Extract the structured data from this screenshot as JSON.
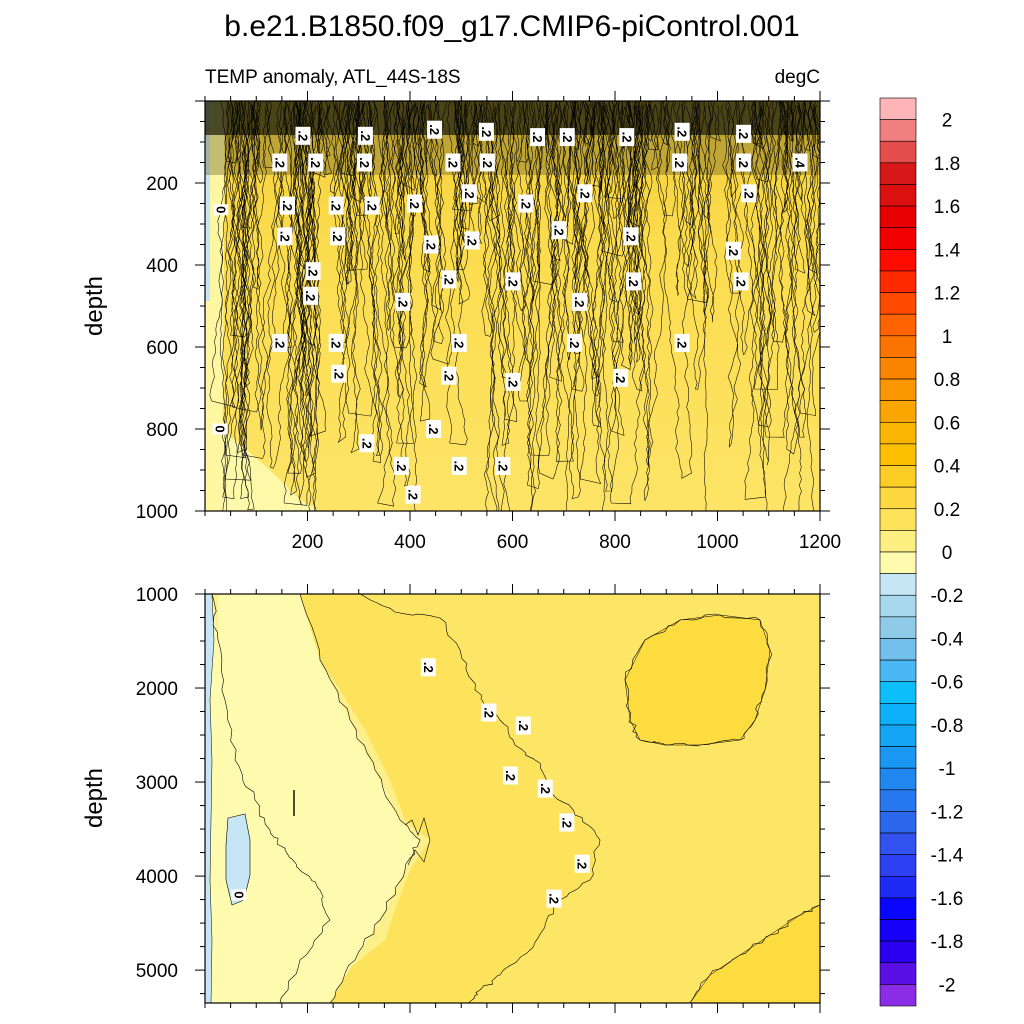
{
  "title": "b.e21.B1850.f09_g17.CMIP6-piControl.001",
  "chart_data": [
    {
      "type": "heatmap",
      "panel": "upper",
      "subtitle_left": "TEMP anomaly, ATL_44S-18S",
      "subtitle_right": "degC",
      "xlabel": "",
      "ylabel": "depth",
      "xlim": [
        0,
        1200
      ],
      "ylim": [
        1000,
        0
      ],
      "xticks": [
        200,
        400,
        600,
        800,
        1000,
        1200
      ],
      "yticks": [
        200,
        400,
        600,
        800,
        1000
      ],
      "contour_labels": [
        {
          "x": 190,
          "y": 85,
          "text": ".2"
        },
        {
          "x": 312,
          "y": 85,
          "text": ".2"
        },
        {
          "x": 447,
          "y": 70,
          "text": ".2"
        },
        {
          "x": 548,
          "y": 75,
          "text": ".2"
        },
        {
          "x": 648,
          "y": 88,
          "text": ".2"
        },
        {
          "x": 706,
          "y": 88,
          "text": ".2"
        },
        {
          "x": 822,
          "y": 88,
          "text": ".2"
        },
        {
          "x": 930,
          "y": 75,
          "text": ".2"
        },
        {
          "x": 1050,
          "y": 80,
          "text": ".2"
        },
        {
          "x": 145,
          "y": 150,
          "text": ".2"
        },
        {
          "x": 215,
          "y": 150,
          "text": ".2"
        },
        {
          "x": 310,
          "y": 150,
          "text": ".2"
        },
        {
          "x": 483,
          "y": 150,
          "text": ".2"
        },
        {
          "x": 550,
          "y": 150,
          "text": ".2"
        },
        {
          "x": 925,
          "y": 150,
          "text": ".2"
        },
        {
          "x": 1050,
          "y": 150,
          "text": ".2"
        },
        {
          "x": 1160,
          "y": 150,
          "text": ".4"
        },
        {
          "x": 30,
          "y": 265,
          "text": "0"
        },
        {
          "x": 160,
          "y": 255,
          "text": ".2"
        },
        {
          "x": 255,
          "y": 255,
          "text": ".2"
        },
        {
          "x": 325,
          "y": 255,
          "text": ".2"
        },
        {
          "x": 408,
          "y": 250,
          "text": ".2"
        },
        {
          "x": 515,
          "y": 225,
          "text": ".2"
        },
        {
          "x": 625,
          "y": 250,
          "text": ".2"
        },
        {
          "x": 740,
          "y": 225,
          "text": ".2"
        },
        {
          "x": 1060,
          "y": 225,
          "text": ".2"
        },
        {
          "x": 155,
          "y": 330,
          "text": ".2"
        },
        {
          "x": 258,
          "y": 330,
          "text": ".2"
        },
        {
          "x": 440,
          "y": 350,
          "text": ".2"
        },
        {
          "x": 520,
          "y": 340,
          "text": ".2"
        },
        {
          "x": 690,
          "y": 315,
          "text": ".2"
        },
        {
          "x": 830,
          "y": 330,
          "text": ".2"
        },
        {
          "x": 1030,
          "y": 365,
          "text": ".2"
        },
        {
          "x": 210,
          "y": 415,
          "text": ".2"
        },
        {
          "x": 475,
          "y": 435,
          "text": ".2"
        },
        {
          "x": 600,
          "y": 440,
          "text": ".2"
        },
        {
          "x": 835,
          "y": 440,
          "text": ".2"
        },
        {
          "x": 1045,
          "y": 440,
          "text": ".2"
        },
        {
          "x": 205,
          "y": 475,
          "text": ".2"
        },
        {
          "x": 385,
          "y": 490,
          "text": ".2"
        },
        {
          "x": 730,
          "y": 490,
          "text": ".2"
        },
        {
          "x": 145,
          "y": 590,
          "text": ".2"
        },
        {
          "x": 255,
          "y": 590,
          "text": ".2"
        },
        {
          "x": 495,
          "y": 590,
          "text": ".2"
        },
        {
          "x": 720,
          "y": 590,
          "text": ".2"
        },
        {
          "x": 930,
          "y": 590,
          "text": ".2"
        },
        {
          "x": 260,
          "y": 665,
          "text": ".2"
        },
        {
          "x": 475,
          "y": 670,
          "text": ".2"
        },
        {
          "x": 600,
          "y": 685,
          "text": ".2"
        },
        {
          "x": 810,
          "y": 675,
          "text": ".2"
        },
        {
          "x": 28,
          "y": 800,
          "text": "0"
        },
        {
          "x": 315,
          "y": 835,
          "text": ".2"
        },
        {
          "x": 445,
          "y": 800,
          "text": ".2"
        },
        {
          "x": 382,
          "y": 890,
          "text": ".2"
        },
        {
          "x": 495,
          "y": 890,
          "text": ".2"
        },
        {
          "x": 580,
          "y": 890,
          "text": ".2"
        },
        {
          "x": 405,
          "y": 960,
          "text": ".2"
        }
      ]
    },
    {
      "type": "heatmap",
      "panel": "lower",
      "xlabel": "",
      "ylabel": "depth",
      "xlim": [
        0,
        1200
      ],
      "ylim": [
        5350,
        1000
      ],
      "yticks": [
        1000,
        2000,
        3000,
        4000,
        5000
      ],
      "contour_labels": [
        {
          "x": 435,
          "y": 1780,
          "text": ".2"
        },
        {
          "x": 553,
          "y": 2260,
          "text": ".2"
        },
        {
          "x": 620,
          "y": 2400,
          "text": ".2"
        },
        {
          "x": 595,
          "y": 2930,
          "text": ".2"
        },
        {
          "x": 663,
          "y": 3070,
          "text": ".2"
        },
        {
          "x": 705,
          "y": 3430,
          "text": ".2"
        },
        {
          "x": 735,
          "y": 3870,
          "text": ".2"
        },
        {
          "x": 680,
          "y": 4240,
          "text": ".2"
        },
        {
          "x": 65,
          "y": 4200,
          "text": "0"
        }
      ]
    }
  ],
  "colorbar": {
    "levels": [
      -2.1,
      -2.0,
      -1.9,
      -1.8,
      -1.7,
      -1.6,
      -1.5,
      -1.4,
      -1.3,
      -1.2,
      -1.1,
      -1.0,
      -0.9,
      -0.8,
      -0.7,
      -0.6,
      -0.5,
      -0.4,
      -0.3,
      -0.2,
      -0.1,
      0.0,
      0.1,
      0.2,
      0.3,
      0.4,
      0.5,
      0.6,
      0.7,
      0.8,
      0.9,
      1.0,
      1.1,
      1.2,
      1.3,
      1.4,
      1.5,
      1.6,
      1.7,
      1.8,
      1.9,
      2.0,
      2.1
    ],
    "labels": [
      "2",
      "1.8",
      "1.6",
      "1.4",
      "1.2",
      "1",
      "0.8",
      "0.6",
      "0.4",
      "0.2",
      "0",
      "-0.2",
      "-0.4",
      "-0.6",
      "-0.8",
      "-1",
      "-1.2",
      "-1.4",
      "-1.6",
      "-1.8",
      "-2"
    ],
    "label_values": [
      2.0,
      1.8,
      1.6,
      1.4,
      1.2,
      1.0,
      0.8,
      0.6,
      0.4,
      0.2,
      0.0,
      -0.2,
      -0.4,
      -0.6,
      -0.8,
      -1.0,
      -1.2,
      -1.4,
      -1.6,
      -1.8,
      -2.0
    ],
    "colors_top_to_bottom": [
      "#fdb5b8",
      "#f07f80",
      "#e54c4c",
      "#d81818",
      "#dc1010",
      "#e70000",
      "#f20000",
      "#ff0b00",
      "#ff2a00",
      "#ff4a00",
      "#fe6300",
      "#fc7400",
      "#fb8500",
      "#fa9600",
      "#f9a700",
      "#f8b600",
      "#fcc000",
      "#fccd25",
      "#fdd840",
      "#fde35c",
      "#fdef82",
      "#fefbae",
      "#c6e6f5",
      "#a8d8ed",
      "#8fcbe9",
      "#73c0ed",
      "#4ab8f5",
      "#0dbff8",
      "#0cb1f9",
      "#14a5f4",
      "#1a96f3",
      "#2187f0",
      "#2777ee",
      "#2c68ee",
      "#3252ef",
      "#2d40f2",
      "#1f2af5",
      "#0a05fb",
      "#1600f7",
      "#2b00f0",
      "#5a10e5",
      "#8b2de6"
    ]
  }
}
